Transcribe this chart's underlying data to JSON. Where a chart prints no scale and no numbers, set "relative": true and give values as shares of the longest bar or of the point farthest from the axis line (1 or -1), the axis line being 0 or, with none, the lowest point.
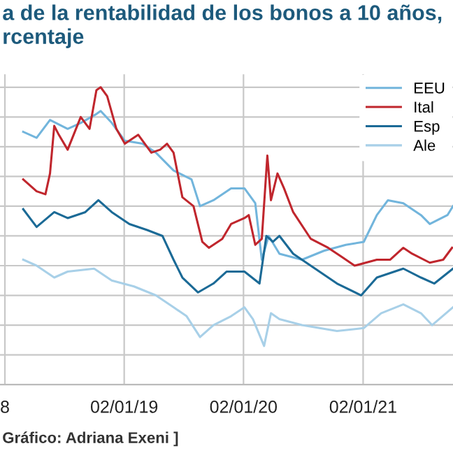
{
  "chart_data": {
    "type": "line",
    "title": "a de la rentabilidad de los bonos a 10 años,\nrcentaje",
    "relative": true,
    "tick_labels": "x",
    "grid": true,
    "legend": "top right",
    "line_style": "solid",
    "marker": "none",
    "xlim": [
      "2017-12-18",
      "2021-10-04"
    ],
    "xticks": [
      {
        "value": "2018-01-02",
        "label": "8"
      },
      {
        "value": "2019-01-02",
        "label": "02/01/19"
      },
      {
        "value": "2020-01-02",
        "label": "02/01/20"
      },
      {
        "value": "2021-01-02",
        "label": "02/01/21"
      }
    ],
    "annotations": [
      "Gráfico: Adriana Exeni ]"
    ],
    "series": [
      {
        "name": "EEU",
        "color": "#72b5dc",
        "x": [
          "2018-02-27",
          "2018-04-09",
          "2018-05-20",
          "2018-07-13",
          "2018-08-22",
          "2018-10-09",
          "2018-10-22",
          "2018-11-25",
          "2019-01-04",
          "2019-02-27",
          "2019-04-09",
          "2019-06-02",
          "2019-07-27",
          "2019-08-22",
          "2019-10-02",
          "2019-11-25",
          "2020-01-05",
          "2020-02-07",
          "2020-02-27",
          "2020-03-19",
          "2020-04-21",
          "2020-06-29",
          "2020-09-04",
          "2020-11-10",
          "2021-01-04",
          "2021-02-13",
          "2021-03-19",
          "2021-05-05",
          "2021-06-28",
          "2021-07-25",
          "2021-09-17",
          "2021-10-04"
        ],
        "values": [
          0.85,
          0.83,
          0.89,
          0.86,
          0.88,
          0.91,
          0.92,
          0.88,
          0.82,
          0.81,
          0.78,
          0.72,
          0.69,
          0.6,
          0.62,
          0.66,
          0.66,
          0.61,
          0.42,
          0.5,
          0.44,
          0.42,
          0.45,
          0.47,
          0.48,
          0.57,
          0.62,
          0.61,
          0.57,
          0.54,
          0.57,
          0.6
        ]
      },
      {
        "name": "Ital",
        "color": "#c0262d",
        "x": [
          "2018-02-27",
          "2018-04-09",
          "2018-05-06",
          "2018-05-20",
          "2018-06-02",
          "2018-06-16",
          "2018-07-13",
          "2018-08-22",
          "2018-09-18",
          "2018-10-09",
          "2018-10-22",
          "2018-11-11",
          "2018-12-09",
          "2019-01-04",
          "2019-02-14",
          "2019-03-26",
          "2019-04-22",
          "2019-05-13",
          "2019-06-02",
          "2019-06-29",
          "2019-08-02",
          "2019-08-29",
          "2019-09-18",
          "2019-10-29",
          "2019-11-25",
          "2020-01-05",
          "2020-01-18",
          "2020-02-07",
          "2020-02-27",
          "2020-03-15",
          "2020-03-26",
          "2020-04-15",
          "2020-05-05",
          "2020-06-02",
          "2020-07-26",
          "2020-09-17",
          "2020-10-28",
          "2020-12-07",
          "2021-02-13",
          "2021-03-26",
          "2021-05-05",
          "2021-06-01",
          "2021-07-25",
          "2021-09-04",
          "2021-10-01"
        ],
        "values": [
          0.69,
          0.65,
          0.64,
          0.71,
          0.87,
          0.84,
          0.79,
          0.9,
          0.86,
          0.99,
          1.0,
          0.97,
          0.86,
          0.81,
          0.84,
          0.78,
          0.79,
          0.81,
          0.78,
          0.63,
          0.6,
          0.48,
          0.46,
          0.49,
          0.54,
          0.56,
          0.57,
          0.47,
          0.49,
          0.77,
          0.62,
          0.71,
          0.66,
          0.58,
          0.49,
          0.46,
          0.43,
          0.4,
          0.42,
          0.42,
          0.46,
          0.44,
          0.41,
          0.42,
          0.46
        ]
      },
      {
        "name": "Esp",
        "color": "#1b6a96",
        "x": [
          "2018-02-27",
          "2018-04-09",
          "2018-06-02",
          "2018-07-13",
          "2018-09-05",
          "2018-10-15",
          "2018-11-25",
          "2019-01-18",
          "2019-03-13",
          "2019-04-29",
          "2019-06-02",
          "2019-06-29",
          "2019-08-16",
          "2019-10-02",
          "2019-11-11",
          "2020-01-05",
          "2020-02-20",
          "2020-03-12",
          "2020-04-01",
          "2020-04-21",
          "2020-06-02",
          "2020-08-08",
          "2020-10-14",
          "2020-12-27",
          "2021-02-13",
          "2021-05-05",
          "2021-06-28",
          "2021-08-08",
          "2021-10-04"
        ],
        "values": [
          0.59,
          0.53,
          0.58,
          0.56,
          0.58,
          0.62,
          0.58,
          0.54,
          0.52,
          0.5,
          0.42,
          0.36,
          0.31,
          0.34,
          0.38,
          0.38,
          0.34,
          0.5,
          0.48,
          0.5,
          0.44,
          0.39,
          0.34,
          0.3,
          0.36,
          0.39,
          0.36,
          0.34,
          0.39
        ]
      },
      {
        "name": "Ale",
        "color": "#a8d0e8",
        "x": [
          "2018-02-27",
          "2018-04-09",
          "2018-06-02",
          "2018-07-13",
          "2018-10-02",
          "2018-11-25",
          "2019-02-01",
          "2019-04-09",
          "2019-06-02",
          "2019-07-12",
          "2019-08-22",
          "2019-10-02",
          "2019-11-25",
          "2020-01-05",
          "2020-01-31",
          "2020-03-05",
          "2020-03-26",
          "2020-04-21",
          "2020-06-29",
          "2020-10-14",
          "2021-01-04",
          "2021-02-26",
          "2021-05-05",
          "2021-06-28",
          "2021-08-01",
          "2021-10-04"
        ],
        "values": [
          0.42,
          0.4,
          0.36,
          0.38,
          0.39,
          0.35,
          0.33,
          0.3,
          0.26,
          0.23,
          0.16,
          0.2,
          0.23,
          0.26,
          0.22,
          0.13,
          0.24,
          0.22,
          0.2,
          0.18,
          0.19,
          0.24,
          0.27,
          0.24,
          0.2,
          0.26
        ]
      }
    ]
  }
}
